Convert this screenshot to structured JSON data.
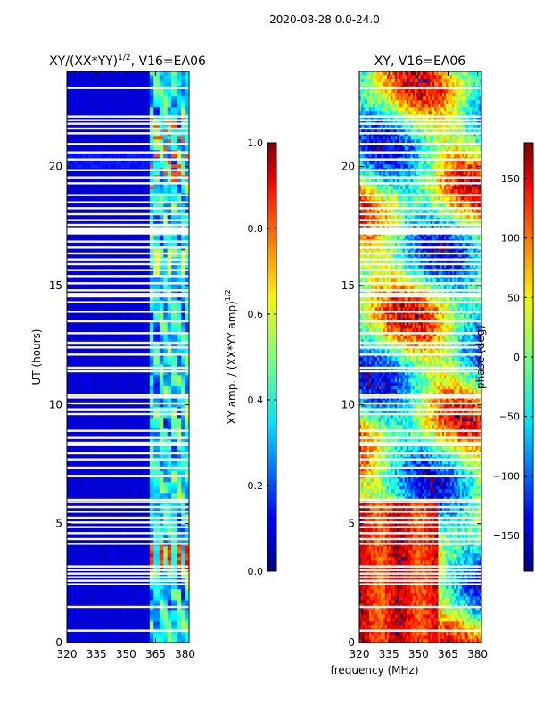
{
  "figure": {
    "suptitle": "2020-08-28 0.0-24.0",
    "shared_xlabel": "frequency (MHz)"
  },
  "chart_data": [
    {
      "type": "heatmap",
      "title": "XY/(XX*YY)^1/2, V16=EA06",
      "title_main": "XY/(XX*YY)",
      "title_exp": "1/2",
      "title_tail": ", V16=EA06",
      "xlabel": "",
      "ylabel": "UT (hours)",
      "xlim": [
        320,
        382
      ],
      "ylim": [
        0,
        24
      ],
      "xticks": [
        320,
        335,
        350,
        365,
        380
      ],
      "yticks": [
        0,
        5,
        10,
        15,
        20
      ],
      "colormap": "jet",
      "colorbar": {
        "label_main": "XY amp. / (XX*YY amp)",
        "label_exp": "1/2",
        "range": [
          0.0,
          1.0
        ],
        "ticks": [
          "0.0",
          "0.2",
          "0.4",
          "0.6",
          "0.8",
          "1.0"
        ],
        "tick_values": [
          0.0,
          0.2,
          0.4,
          0.6,
          0.8,
          1.0
        ]
      },
      "notes": "Mostly low normalized amplitude (~0.05) below 362 MHz; 362-381 MHz band shows higher values (~0.3-0.5) with peaks up to ~0.8-0.9 near UT 3-4 h and 19-22 h. White rows are flagged/missing data."
    },
    {
      "type": "heatmap",
      "title": "XY, V16=EA06",
      "xlabel": "",
      "ylabel": "",
      "xlim": [
        320,
        382
      ],
      "ylim": [
        0,
        24
      ],
      "xticks": [
        320,
        335,
        350,
        365,
        380
      ],
      "yticks": [
        0,
        5,
        10,
        15,
        20
      ],
      "colormap": "jet",
      "colorbar": {
        "label": "phase (deg)",
        "range": [
          -180,
          180
        ],
        "ticks": [
          "−150",
          "−100",
          "−50",
          "0",
          "50",
          "100",
          "150"
        ],
        "tick_values": [
          -150,
          -100,
          -50,
          0,
          50,
          100,
          150
        ]
      },
      "notes": "Phase varies strongly across frequency and time; banded structure with red/orange (~100-180 deg) dominating low frequencies at UT 0-6 h and mixed blue/cyan elsewhere."
    }
  ],
  "flagged_ut_hours": [
    0.5,
    1.5,
    2.45,
    2.6,
    2.75,
    2.9,
    3.05,
    3.2,
    4.15,
    4.35,
    4.6,
    4.85,
    5.05,
    5.25,
    5.5,
    5.7,
    5.9,
    6.0,
    7.0,
    7.35,
    7.7,
    7.95,
    8.3,
    8.4,
    8.6,
    8.9,
    9.6,
    9.8,
    10.05,
    10.3,
    10.4,
    11.4,
    11.55,
    12.1,
    12.4,
    12.6,
    13.0,
    13.5,
    13.9,
    14.3,
    14.55,
    14.65,
    14.8,
    15.1,
    15.4,
    15.65,
    15.9,
    16.1,
    16.35,
    16.6,
    16.85,
    17.2,
    17.35,
    17.55,
    17.75,
    18.0,
    18.25,
    18.5,
    18.8,
    19.3,
    19.55,
    19.85,
    20.3,
    20.6,
    20.95,
    21.4,
    21.6,
    21.8,
    21.95,
    22.1,
    23.3
  ]
}
